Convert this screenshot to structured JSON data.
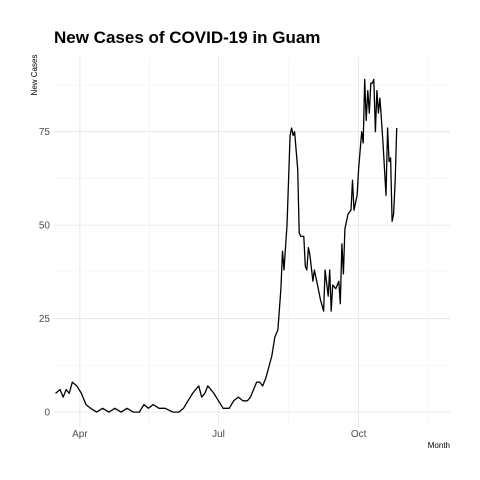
{
  "chart_data": {
    "type": "line",
    "title": "New Cases of COVID-19 in Guam",
    "xlabel": "Month",
    "ylabel": "New Cases",
    "grid": true,
    "xlim": [
      "2020-03-15",
      "2020-11-30"
    ],
    "ylim": [
      -4,
      95
    ],
    "x_ticks": [
      {
        "label": "Apr",
        "date": "2020-04-01"
      },
      {
        "label": "Jul",
        "date": "2020-07-01"
      },
      {
        "label": "Oct",
        "date": "2020-10-01"
      }
    ],
    "y_ticks": [
      0,
      25,
      50,
      75
    ],
    "series": [
      {
        "color": "#000000",
        "points": [
          [
            "2020-03-16",
            5
          ],
          [
            "2020-03-19",
            6
          ],
          [
            "2020-03-21",
            4
          ],
          [
            "2020-03-23",
            6
          ],
          [
            "2020-03-25",
            5
          ],
          [
            "2020-03-27",
            8
          ],
          [
            "2020-03-30",
            7
          ],
          [
            "2020-04-02",
            5
          ],
          [
            "2020-04-05",
            2
          ],
          [
            "2020-04-08",
            1
          ],
          [
            "2020-04-12",
            0
          ],
          [
            "2020-04-16",
            1
          ],
          [
            "2020-04-20",
            0
          ],
          [
            "2020-04-24",
            1
          ],
          [
            "2020-04-28",
            0
          ],
          [
            "2020-05-02",
            1
          ],
          [
            "2020-05-06",
            0
          ],
          [
            "2020-05-10",
            0
          ],
          [
            "2020-05-13",
            2
          ],
          [
            "2020-05-16",
            1
          ],
          [
            "2020-05-19",
            2
          ],
          [
            "2020-05-23",
            1
          ],
          [
            "2020-05-27",
            1
          ],
          [
            "2020-06-01",
            0
          ],
          [
            "2020-06-05",
            0
          ],
          [
            "2020-06-08",
            1
          ],
          [
            "2020-06-11",
            3
          ],
          [
            "2020-06-14",
            5
          ],
          [
            "2020-06-16",
            6
          ],
          [
            "2020-06-18",
            7
          ],
          [
            "2020-06-20",
            4
          ],
          [
            "2020-06-22",
            5
          ],
          [
            "2020-06-24",
            7
          ],
          [
            "2020-06-26",
            6
          ],
          [
            "2020-06-28",
            5
          ],
          [
            "2020-07-01",
            3
          ],
          [
            "2020-07-04",
            1
          ],
          [
            "2020-07-08",
            1
          ],
          [
            "2020-07-11",
            3
          ],
          [
            "2020-07-14",
            4
          ],
          [
            "2020-07-17",
            3
          ],
          [
            "2020-07-20",
            3
          ],
          [
            "2020-07-22",
            4
          ],
          [
            "2020-07-24",
            6
          ],
          [
            "2020-07-26",
            8
          ],
          [
            "2020-07-28",
            8
          ],
          [
            "2020-07-30",
            7
          ],
          [
            "2020-08-01",
            9
          ],
          [
            "2020-08-03",
            12
          ],
          [
            "2020-08-05",
            15
          ],
          [
            "2020-08-07",
            20
          ],
          [
            "2020-08-09",
            22
          ],
          [
            "2020-08-11",
            33
          ],
          [
            "2020-08-12",
            43
          ],
          [
            "2020-08-13",
            38
          ],
          [
            "2020-08-15",
            50
          ],
          [
            "2020-08-17",
            74
          ],
          [
            "2020-08-18",
            76
          ],
          [
            "2020-08-19",
            74
          ],
          [
            "2020-08-20",
            75
          ],
          [
            "2020-08-22",
            65
          ],
          [
            "2020-08-23",
            48
          ],
          [
            "2020-08-24",
            47
          ],
          [
            "2020-08-26",
            47
          ],
          [
            "2020-08-27",
            39
          ],
          [
            "2020-08-28",
            38
          ],
          [
            "2020-08-29",
            44
          ],
          [
            "2020-08-30",
            42
          ],
          [
            "2020-09-01",
            35
          ],
          [
            "2020-09-02",
            38
          ],
          [
            "2020-09-04",
            34
          ],
          [
            "2020-09-06",
            30
          ],
          [
            "2020-09-08",
            27
          ],
          [
            "2020-09-09",
            38
          ],
          [
            "2020-09-11",
            31
          ],
          [
            "2020-09-12",
            38
          ],
          [
            "2020-09-13",
            27
          ],
          [
            "2020-09-14",
            34
          ],
          [
            "2020-09-16",
            33
          ],
          [
            "2020-09-18",
            35
          ],
          [
            "2020-09-19",
            29
          ],
          [
            "2020-09-20",
            45
          ],
          [
            "2020-09-21",
            37
          ],
          [
            "2020-09-22",
            49
          ],
          [
            "2020-09-24",
            53
          ],
          [
            "2020-09-26",
            54
          ],
          [
            "2020-09-27",
            62
          ],
          [
            "2020-09-28",
            54
          ],
          [
            "2020-09-30",
            58
          ],
          [
            "2020-10-01",
            65
          ],
          [
            "2020-10-03",
            75
          ],
          [
            "2020-10-04",
            72
          ],
          [
            "2020-10-05",
            89
          ],
          [
            "2020-10-06",
            78
          ],
          [
            "2020-10-07",
            86
          ],
          [
            "2020-10-08",
            80
          ],
          [
            "2020-10-09",
            88
          ],
          [
            "2020-10-10",
            88
          ],
          [
            "2020-10-11",
            89
          ],
          [
            "2020-10-12",
            75
          ],
          [
            "2020-10-13",
            86
          ],
          [
            "2020-10-14",
            80
          ],
          [
            "2020-10-15",
            84
          ],
          [
            "2020-10-16",
            78
          ],
          [
            "2020-10-17",
            72
          ],
          [
            "2020-10-18",
            65
          ],
          [
            "2020-10-19",
            58
          ],
          [
            "2020-10-20",
            76
          ],
          [
            "2020-10-21",
            67
          ],
          [
            "2020-10-22",
            68
          ],
          [
            "2020-10-23",
            51
          ],
          [
            "2020-10-24",
            53
          ],
          [
            "2020-10-25",
            62
          ],
          [
            "2020-10-26",
            76
          ]
        ]
      }
    ]
  }
}
